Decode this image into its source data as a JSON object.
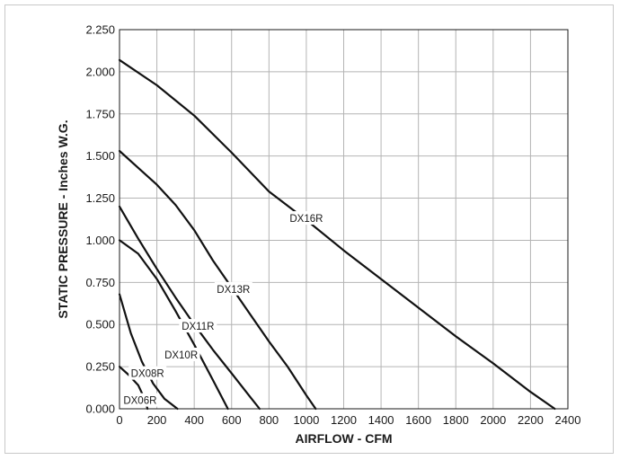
{
  "chart_data": {
    "type": "line",
    "title": "",
    "xlabel": "AIRFLOW - CFM",
    "ylabel": "STATIC PRESSURE - Inches W.G.",
    "xlim": [
      0,
      2400
    ],
    "ylim": [
      0,
      2.25
    ],
    "grid": true,
    "x_ticks": [
      "0",
      "200",
      "400",
      "600",
      "800",
      "1000",
      "1200",
      "1400",
      "1600",
      "1800",
      "2000",
      "2200",
      "2400"
    ],
    "y_ticks": [
      "0.000",
      "0.250",
      "0.500",
      "0.750",
      "1.000",
      "1.250",
      "1.500",
      "1.750",
      "2.000",
      "2.250"
    ],
    "series": [
      {
        "name": "DX06R",
        "x": [
          0,
          50,
          100,
          130,
          150
        ],
        "y": [
          0.25,
          0.2,
          0.14,
          0.07,
          0.0
        ]
      },
      {
        "name": "DX08R",
        "x": [
          0,
          60,
          120,
          180,
          240,
          310
        ],
        "y": [
          0.68,
          0.45,
          0.28,
          0.15,
          0.06,
          0.0
        ]
      },
      {
        "name": "DX10R",
        "x": [
          0,
          100,
          200,
          300,
          400,
          500,
          580
        ],
        "y": [
          1.0,
          0.92,
          0.77,
          0.58,
          0.38,
          0.17,
          0.0
        ]
      },
      {
        "name": "DX11R",
        "x": [
          0,
          100,
          200,
          300,
          400,
          500,
          600,
          700,
          750
        ],
        "y": [
          1.2,
          1.01,
          0.83,
          0.66,
          0.5,
          0.35,
          0.21,
          0.07,
          0.0
        ]
      },
      {
        "name": "DX13R",
        "x": [
          0,
          100,
          200,
          300,
          400,
          500,
          600,
          700,
          800,
          900,
          1000,
          1050
        ],
        "y": [
          1.53,
          1.43,
          1.33,
          1.21,
          1.06,
          0.88,
          0.72,
          0.56,
          0.4,
          0.25,
          0.08,
          0.0
        ]
      },
      {
        "name": "DX16R",
        "x": [
          0,
          200,
          400,
          600,
          800,
          1000,
          1200,
          1400,
          1600,
          1800,
          2000,
          2200,
          2330
        ],
        "y": [
          2.07,
          1.92,
          1.74,
          1.52,
          1.29,
          1.12,
          0.94,
          0.77,
          0.6,
          0.43,
          0.27,
          0.1,
          0.0
        ]
      }
    ],
    "annotations": [
      {
        "text": "DX06R",
        "x": 110,
        "y": 0.05
      },
      {
        "text": "DX08R",
        "x": 150,
        "y": 0.21
      },
      {
        "text": "DX10R",
        "x": 330,
        "y": 0.32
      },
      {
        "text": "DX11R",
        "x": 420,
        "y": 0.49
      },
      {
        "text": "DX13R",
        "x": 610,
        "y": 0.71
      },
      {
        "text": "DX16R",
        "x": 1000,
        "y": 1.13
      }
    ]
  }
}
